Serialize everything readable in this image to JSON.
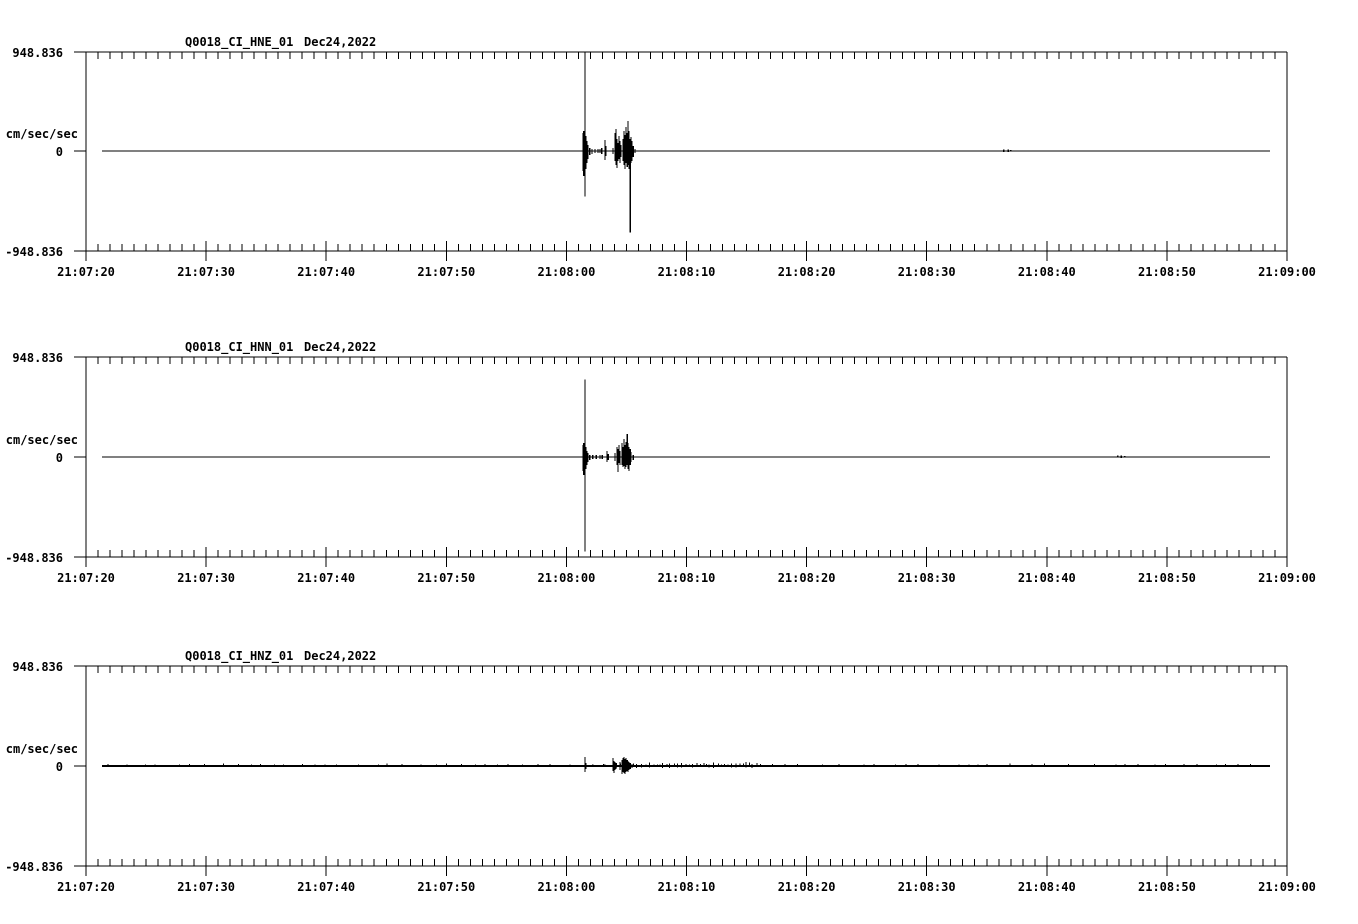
{
  "page": {
    "background_color": "#ffffff",
    "foreground_color": "#000000",
    "description": "Three-panel strong-motion seismogram (accelerometer) record display"
  },
  "chart_data": [
    {
      "type": "line",
      "title": "Q0018_CI_HNE_01  Dec24,2022",
      "station_channel": "Q0018_CI_HNE_01",
      "date": "Dec24,2022",
      "y_axis": {
        "unit": "cm/sec/sec",
        "max": 948.836,
        "min": -948.836,
        "max_label": "948.836",
        "zero_label": "0",
        "min_label": "-948.836"
      },
      "x_axis": {
        "start": "21:07:20",
        "end": "21:09:00",
        "major_tick_sec": 10,
        "minor_tick_sec": 1,
        "tick_labels": [
          "21:07:20",
          "21:07:30",
          "21:07:40",
          "21:07:50",
          "21:08:00",
          "21:08:10",
          "21:08:20",
          "21:08:30",
          "21:08:40",
          "21:08:50",
          "21:09:00"
        ]
      },
      "baseline_value": 0,
      "event_onset": "21:08:01",
      "noisy_baseline": false,
      "trace_extent_sec": [
        1.3,
        98.6
      ],
      "spikes_sec_up_down": [
        [
          41.38,
          171,
          190
        ],
        [
          41.46,
          190,
          237
        ],
        [
          41.55,
          949,
          436
        ],
        [
          41.63,
          142,
          171
        ],
        [
          41.71,
          95,
          114
        ],
        [
          41.8,
          57,
          76
        ],
        [
          41.96,
          28,
          38
        ],
        [
          42.13,
          19,
          28
        ],
        [
          42.38,
          19,
          19
        ],
        [
          42.63,
          19,
          19
        ],
        [
          42.8,
          19,
          19
        ],
        [
          42.96,
          28,
          28
        ],
        [
          43.21,
          104,
          85
        ],
        [
          43.3,
          47,
          47
        ],
        [
          43.88,
          28,
          28
        ],
        [
          44.05,
          171,
          95
        ],
        [
          44.13,
          209,
          133
        ],
        [
          44.21,
          114,
          161
        ],
        [
          44.3,
          76,
          95
        ],
        [
          44.38,
          142,
          76
        ],
        [
          44.46,
          95,
          114
        ],
        [
          44.55,
          57,
          57
        ],
        [
          44.71,
          114,
          95
        ],
        [
          44.8,
          190,
          133
        ],
        [
          44.88,
          152,
          171
        ],
        [
          44.96,
          228,
          114
        ],
        [
          45.05,
          171,
          152
        ],
        [
          45.13,
          285,
          133
        ],
        [
          45.21,
          190,
          171
        ],
        [
          45.3,
          114,
          778
        ],
        [
          45.38,
          133,
          114
        ],
        [
          45.46,
          95,
          95
        ],
        [
          45.55,
          47,
          57
        ],
        [
          45.71,
          19,
          19
        ],
        [
          76.4,
          15,
          8
        ],
        [
          76.8,
          15,
          8
        ],
        [
          77.0,
          10,
          6
        ]
      ]
    },
    {
      "type": "line",
      "title": "Q0018_CI_HNN_01  Dec24,2022",
      "station_channel": "Q0018_CI_HNN_01",
      "date": "Dec24,2022",
      "y_axis": {
        "unit": "cm/sec/sec",
        "max": 948.836,
        "min": -948.836,
        "max_label": "948.836",
        "zero_label": "0",
        "min_label": "-948.836"
      },
      "x_axis": {
        "start": "21:07:20",
        "end": "21:09:00",
        "major_tick_sec": 10,
        "minor_tick_sec": 1,
        "tick_labels": [
          "21:07:20",
          "21:07:30",
          "21:07:40",
          "21:07:50",
          "21:08:00",
          "21:08:10",
          "21:08:20",
          "21:08:30",
          "21:08:40",
          "21:08:50",
          "21:09:00"
        ]
      },
      "baseline_value": 0,
      "event_onset": "21:08:01",
      "noisy_baseline": false,
      "trace_extent_sec": [
        1.3,
        98.6
      ],
      "spikes_sec_up_down": [
        [
          41.38,
          114,
          133
        ],
        [
          41.46,
          133,
          171
        ],
        [
          41.55,
          740,
          901
        ],
        [
          41.63,
          95,
          114
        ],
        [
          41.71,
          57,
          76
        ],
        [
          41.8,
          38,
          47
        ],
        [
          41.96,
          19,
          28
        ],
        [
          42.2,
          19,
          19
        ],
        [
          42.5,
          19,
          19
        ],
        [
          42.8,
          19,
          19
        ],
        [
          43.0,
          19,
          19
        ],
        [
          43.38,
          57,
          47
        ],
        [
          43.47,
          28,
          28
        ],
        [
          44.05,
          38,
          38
        ],
        [
          44.21,
          95,
          76
        ],
        [
          44.3,
          76,
          142
        ],
        [
          44.38,
          114,
          57
        ],
        [
          44.46,
          57,
          76
        ],
        [
          44.63,
          133,
          76
        ],
        [
          44.71,
          95,
          95
        ],
        [
          44.8,
          171,
          85
        ],
        [
          44.88,
          114,
          114
        ],
        [
          44.96,
          142,
          95
        ],
        [
          45.05,
          218,
          76
        ],
        [
          45.13,
          133,
          114
        ],
        [
          45.21,
          95,
          133
        ],
        [
          45.3,
          76,
          76
        ],
        [
          45.38,
          47,
          47
        ],
        [
          45.55,
          19,
          28
        ],
        [
          85.9,
          15,
          4
        ],
        [
          86.2,
          15,
          8
        ],
        [
          86.5,
          10,
          6
        ]
      ]
    },
    {
      "type": "line",
      "title": "Q0018_CI_HNZ_01  Dec24,2022",
      "station_channel": "Q0018_CI_HNZ_01",
      "date": "Dec24,2022",
      "y_axis": {
        "unit": "cm/sec/sec",
        "max": 948.836,
        "min": -948.836,
        "max_label": "948.836",
        "zero_label": "0",
        "min_label": "-948.836"
      },
      "x_axis": {
        "start": "21:07:20",
        "end": "21:09:00",
        "major_tick_sec": 10,
        "minor_tick_sec": 1,
        "tick_labels": [
          "21:07:20",
          "21:07:30",
          "21:07:40",
          "21:07:50",
          "21:08:00",
          "21:08:10",
          "21:08:20",
          "21:08:30",
          "21:08:40",
          "21:08:50",
          "21:09:00"
        ]
      },
      "baseline_value": 0,
      "event_onset": "21:08:01",
      "noisy_baseline": true,
      "noise": {
        "start_sec": 1.5,
        "end_sec": 98.4,
        "amp_units": 17,
        "dense_start_sec": 43.8,
        "dense_end_sec": 56,
        "dense_amp_units": 26
      },
      "trace_extent_sec": [
        1.3,
        98.6
      ],
      "spikes_sec_up_down": [
        [
          41.55,
          85,
          57
        ],
        [
          41.63,
          28,
          28
        ],
        [
          42.2,
          15,
          10
        ],
        [
          42.8,
          10,
          10
        ],
        [
          43.2,
          15,
          10
        ],
        [
          43.88,
          76,
          47
        ],
        [
          43.96,
          47,
          66
        ],
        [
          44.05,
          38,
          38
        ],
        [
          44.13,
          28,
          28
        ],
        [
          44.46,
          38,
          38
        ],
        [
          44.63,
          57,
          76
        ],
        [
          44.71,
          76,
          57
        ],
        [
          44.8,
          85,
          66
        ],
        [
          44.88,
          66,
          76
        ],
        [
          44.96,
          76,
          57
        ],
        [
          45.05,
          57,
          47
        ],
        [
          45.13,
          47,
          57
        ],
        [
          45.21,
          38,
          38
        ],
        [
          45.3,
          28,
          28
        ],
        [
          45.46,
          19,
          19
        ]
      ]
    }
  ]
}
